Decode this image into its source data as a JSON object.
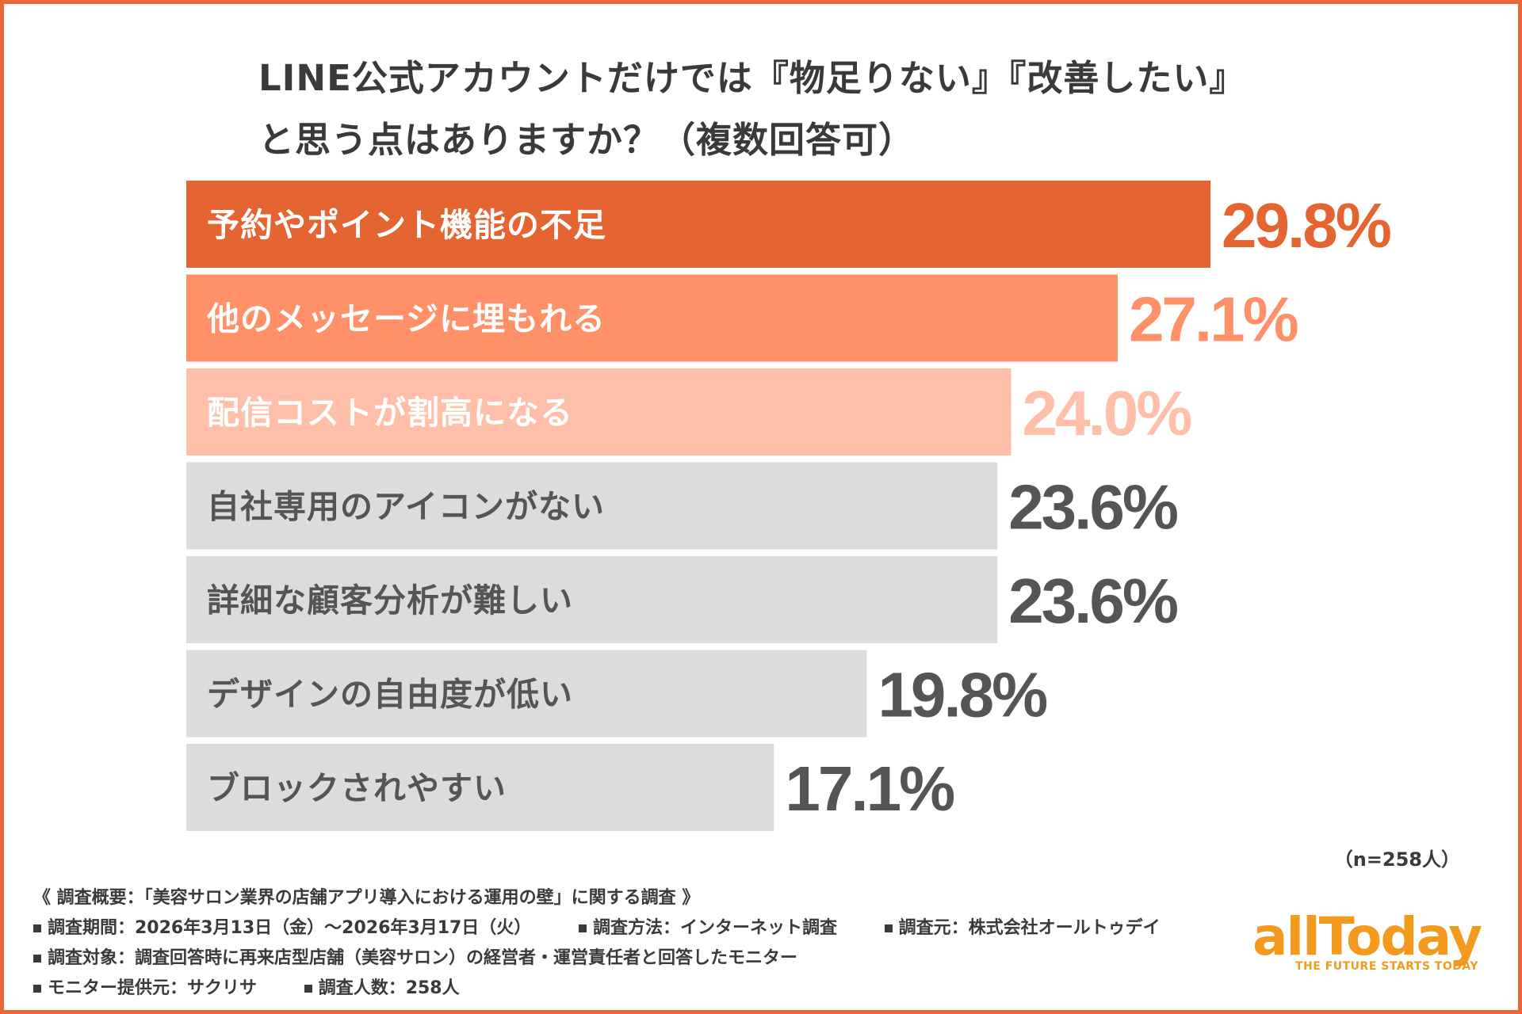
{
  "chart_data": {
    "type": "bar",
    "orientation": "horizontal",
    "title_lines": [
      "LINE公式アカウントだけでは『物足りない』『改善したい』",
      "と思う点はありますか？（複数回答可）"
    ],
    "categories": [
      "予約やポイント機能の不足",
      "他のメッセージに埋もれる",
      "配信コストが割高になる",
      "自社専用のアイコンがない",
      "詳細な顧客分析が難しい",
      "デザインの自由度が低い",
      "ブロックされやすい"
    ],
    "values": [
      29.8,
      27.1,
      24.0,
      23.6,
      23.6,
      19.8,
      17.1
    ],
    "value_labels": [
      "29.8%",
      "27.1%",
      "24.0%",
      "23.6%",
      "23.6%",
      "19.8%",
      "17.1%"
    ],
    "unit": "%",
    "sample_size": "（n=258人）",
    "grid": false,
    "legend": "none"
  },
  "colors": {
    "frame": "#e8683a",
    "bar_colors": [
      "#e46532",
      "#ff9068",
      "#ffbfa8",
      "#dcdcdc",
      "#dcdcdc",
      "#dcdcdc",
      "#dcdcdc"
    ],
    "label_colors": [
      "#ffffff",
      "#ffffff",
      "#ffffff",
      "#555555",
      "#555555",
      "#555555",
      "#555555"
    ],
    "value_colors": [
      "#e46532",
      "#ff9068",
      "#ffbfa8",
      "#555555",
      "#555555",
      "#555555",
      "#555555"
    ],
    "logo": "#f39a1e"
  },
  "footer": {
    "heading": "《 調査概要：「美容サロン業界の店舗アプリ導入における運用の壁」に関する調査 》",
    "rows": [
      [
        "調査期間：2026年3月13日（金）〜2026年3月17日（火）",
        "調査方法：インターネット調査",
        "調査元：株式会社オールトゥデイ"
      ],
      [
        "調査対象：調査回答時に再来店型店舗（美容サロン）の経営者・運営責任者と回答したモニター"
      ],
      [
        "モニター提供元：サクリサ",
        "調査人数：258人"
      ]
    ]
  },
  "logo": {
    "text": "allToday",
    "tagline": "THE FUTURE STARTS TODAY"
  }
}
